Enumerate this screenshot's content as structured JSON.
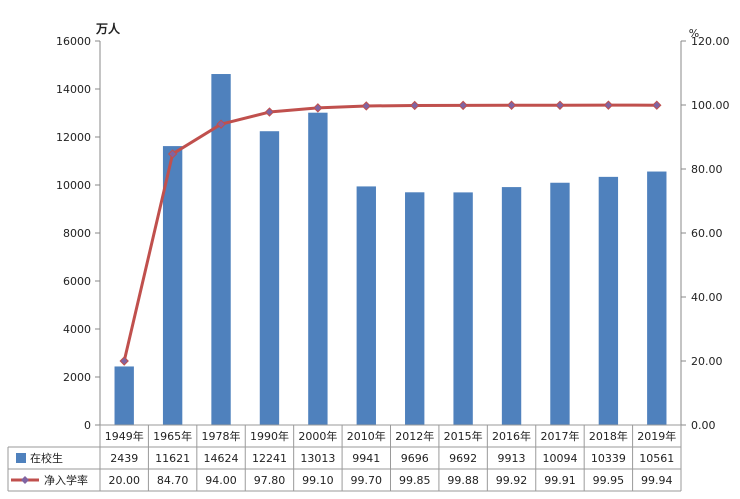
{
  "chart_data": {
    "type": "bar+line",
    "categories": [
      "1949年",
      "1965年",
      "1978年",
      "1990年",
      "2000年",
      "2010年",
      "2012年",
      "2015年",
      "2016年",
      "2017年",
      "2018年",
      "2019年"
    ],
    "y_left_unit": "万人",
    "y_right_unit": "%",
    "y_left_ticks": [
      "0",
      "2000",
      "4000",
      "6000",
      "8000",
      "10000",
      "12000",
      "14000",
      "16000"
    ],
    "y_right_ticks": [
      "0.00",
      "20.00",
      "40.00",
      "60.00",
      "80.00",
      "100.00",
      "120.00"
    ],
    "y_left_range": [
      0,
      16000
    ],
    "y_right_range": [
      0,
      120
    ],
    "series": [
      {
        "name": "在校生",
        "kind": "bar",
        "axis": "left",
        "color": "#4F81BD",
        "values": [
          2439,
          11621,
          14624,
          12241,
          13013,
          9941,
          9696,
          9692,
          9913,
          10094,
          10339,
          10561
        ],
        "labels": [
          "2439",
          "11621",
          "14624",
          "12241",
          "13013",
          "9941",
          "9696",
          "9692",
          "9913",
          "10094",
          "10339",
          "10561"
        ]
      },
      {
        "name": "净入学率",
        "kind": "line",
        "axis": "right",
        "color": "#C0504D",
        "marker_color": "#8064A2",
        "values": [
          20.0,
          84.7,
          94.0,
          97.8,
          99.1,
          99.7,
          99.85,
          99.88,
          99.92,
          99.91,
          99.95,
          99.94
        ],
        "labels": [
          "20.00",
          "84.70",
          "94.00",
          "97.80",
          "99.10",
          "99.70",
          "99.85",
          "99.88",
          "99.92",
          "99.91",
          "99.95",
          "99.94"
        ]
      }
    ],
    "grid": false,
    "legend": "data-table"
  }
}
